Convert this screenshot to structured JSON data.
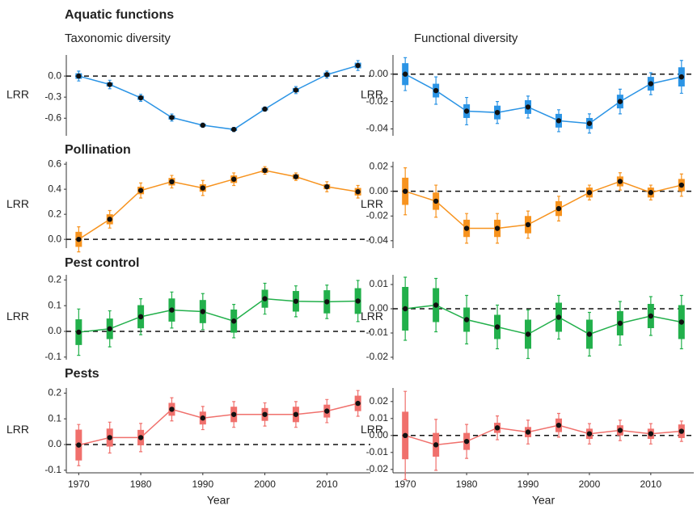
{
  "chart_data": [
    {
      "type": "line",
      "title": "Aquatic functions",
      "subtitle": "Taxonomic diversity",
      "ylabel": "LRR",
      "color": "#2b94e5",
      "x": [
        1970,
        1975,
        1980,
        1985,
        1990,
        1995,
        2000,
        2005,
        2010,
        2015
      ],
      "values": [
        0.0,
        -0.12,
        -0.31,
        -0.59,
        -0.7,
        -0.76,
        -0.47,
        -0.2,
        0.02,
        0.15
      ],
      "inner_error": [
        0.04,
        0.03,
        0.03,
        0.03,
        0.02,
        0.02,
        0.02,
        0.03,
        0.03,
        0.04
      ],
      "outer_error": [
        0.07,
        0.06,
        0.05,
        0.05,
        0.03,
        0.03,
        0.03,
        0.05,
        0.05,
        0.07
      ],
      "xlim": [
        1968,
        2017
      ],
      "ylim": [
        -0.85,
        0.3
      ],
      "yticks": [
        {
          "value": 0,
          "label": "0.0"
        },
        -0.3,
        -0.6
      ],
      "reference_y": 0
    },
    {
      "type": "line",
      "subtitle": "Functional diversity",
      "ylabel": "LRR",
      "color": "#2b94e5",
      "x": [
        1970,
        1975,
        1980,
        1985,
        1990,
        1995,
        2000,
        2005,
        2010,
        2015
      ],
      "values": [
        0.0,
        -0.012,
        -0.027,
        -0.028,
        -0.024,
        -0.034,
        -0.036,
        -0.02,
        -0.007,
        -0.002
      ],
      "inner_error": [
        0.008,
        0.005,
        0.005,
        0.005,
        0.005,
        0.005,
        0.004,
        0.005,
        0.005,
        0.007
      ],
      "outer_error": [
        0.012,
        0.01,
        0.01,
        0.008,
        0.008,
        0.008,
        0.007,
        0.009,
        0.008,
        0.012
      ],
      "xlim": [
        1968,
        2017
      ],
      "ylim": [
        -0.045,
        0.014
      ],
      "yticks": [
        {
          "value": 0,
          "label": "0.00"
        },
        -0.02,
        -0.04
      ],
      "reference_y": 0
    },
    {
      "type": "line",
      "title": "Pollination",
      "ylabel": "LRR",
      "color": "#f7931e",
      "x": [
        1970,
        1975,
        1980,
        1985,
        1990,
        1995,
        2000,
        2005,
        2010,
        2015
      ],
      "values": [
        0.0,
        0.16,
        0.39,
        0.46,
        0.41,
        0.48,
        0.55,
        0.5,
        0.42,
        0.38
      ],
      "inner_error": [
        0.06,
        0.04,
        0.03,
        0.03,
        0.03,
        0.03,
        0.02,
        0.02,
        0.02,
        0.03
      ],
      "outer_error": [
        0.1,
        0.07,
        0.06,
        0.05,
        0.06,
        0.05,
        0.03,
        0.03,
        0.04,
        0.05
      ],
      "xlim": [
        1968,
        2017
      ],
      "ylim": [
        -0.07,
        0.62
      ],
      "yticks": [
        {
          "value": 0,
          "label": "0.0"
        },
        0.2,
        0.4,
        0.6
      ],
      "reference_y": 0
    },
    {
      "type": "line",
      "ylabel": "LRR",
      "color": "#f7931e",
      "x": [
        1970,
        1975,
        1980,
        1985,
        1990,
        1995,
        2000,
        2005,
        2010,
        2015
      ],
      "values": [
        0.0,
        -0.008,
        -0.03,
        -0.03,
        -0.027,
        -0.014,
        -0.001,
        0.008,
        -0.001,
        0.005
      ],
      "inner_error": [
        0.011,
        0.007,
        0.007,
        0.007,
        0.007,
        0.006,
        0.004,
        0.004,
        0.004,
        0.005
      ],
      "outer_error": [
        0.019,
        0.013,
        0.012,
        0.012,
        0.011,
        0.01,
        0.006,
        0.007,
        0.006,
        0.009
      ],
      "xlim": [
        1968,
        2017
      ],
      "ylim": [
        -0.046,
        0.024
      ],
      "yticks": [
        {
          "value": 0.02,
          "label": "0.02"
        },
        {
          "value": 0,
          "label": "0.00"
        },
        -0.02,
        -0.04
      ],
      "reference_y": 0
    },
    {
      "type": "line",
      "title": "Pest control",
      "ylabel": "LRR",
      "color": "#22b04b",
      "x": [
        1970,
        1975,
        1980,
        1985,
        1990,
        1995,
        2000,
        2005,
        2010,
        2015
      ],
      "values": [
        -0.003,
        0.01,
        0.057,
        0.083,
        0.077,
        0.04,
        0.127,
        0.117,
        0.115,
        0.118
      ],
      "inner_error": [
        0.05,
        0.04,
        0.045,
        0.045,
        0.045,
        0.045,
        0.035,
        0.04,
        0.045,
        0.05
      ],
      "outer_error": [
        0.09,
        0.07,
        0.07,
        0.07,
        0.07,
        0.065,
        0.06,
        0.06,
        0.065,
        0.08
      ],
      "xlim": [
        1968,
        2017
      ],
      "ylim": [
        -0.11,
        0.22
      ],
      "yticks": [
        -0.1,
        {
          "value": 0,
          "label": "0.0"
        },
        0.1,
        0.2
      ],
      "reference_y": 0
    },
    {
      "type": "line",
      "ylabel": "LRR",
      "color": "#22b04b",
      "x": [
        1970,
        1975,
        1980,
        1985,
        1990,
        1995,
        2000,
        2005,
        2010,
        2015
      ],
      "values": [
        0.0,
        0.0015,
        -0.0045,
        -0.0075,
        -0.0105,
        -0.0035,
        -0.0105,
        -0.006,
        -0.003,
        -0.0055
      ],
      "inner_error": [
        0.009,
        0.007,
        0.005,
        0.005,
        0.006,
        0.006,
        0.006,
        0.005,
        0.005,
        0.007
      ],
      "outer_error": [
        0.013,
        0.011,
        0.01,
        0.009,
        0.01,
        0.009,
        0.009,
        0.009,
        0.008,
        0.011
      ],
      "xlim": [
        1968,
        2017
      ],
      "ylim": [
        -0.021,
        0.014
      ],
      "yticks": [
        -0.02,
        -0.01,
        {
          "value": 0,
          "label": "0.00"
        },
        0.01
      ],
      "reference_y": 0
    },
    {
      "type": "line",
      "title": "Pests",
      "ylabel": "LRR",
      "color": "#f0706c",
      "xlabel": "Year",
      "xticks": [
        1970,
        1980,
        1990,
        2000,
        2010
      ],
      "x": [
        1970,
        1975,
        1980,
        1985,
        1990,
        1995,
        2000,
        2005,
        2010,
        2015
      ],
      "values": [
        -0.002,
        0.027,
        0.027,
        0.137,
        0.103,
        0.117,
        0.117,
        0.117,
        0.13,
        0.16
      ],
      "inner_error": [
        0.06,
        0.035,
        0.03,
        0.025,
        0.025,
        0.03,
        0.025,
        0.03,
        0.025,
        0.03
      ],
      "outer_error": [
        0.08,
        0.06,
        0.055,
        0.045,
        0.045,
        0.05,
        0.045,
        0.05,
        0.045,
        0.05
      ],
      "xlim": [
        1968,
        2017
      ],
      "ylim": [
        -0.11,
        0.22
      ],
      "yticks": [
        -0.1,
        {
          "value": 0,
          "label": "0.0"
        },
        0.1,
        0.2
      ],
      "reference_y": 0
    },
    {
      "type": "line",
      "ylabel": "LRR",
      "color": "#f0706c",
      "xlabel": "Year",
      "xticks": [
        1970,
        1980,
        1990,
        2000,
        2010
      ],
      "x": [
        1970,
        1975,
        1980,
        1985,
        1990,
        1995,
        2000,
        2005,
        2010,
        2015
      ],
      "values": [
        0.0,
        -0.0055,
        -0.0035,
        0.0045,
        0.002,
        0.006,
        0.001,
        0.003,
        0.001,
        0.0025
      ],
      "inner_error": [
        0.014,
        0.007,
        0.005,
        0.003,
        0.003,
        0.004,
        0.003,
        0.003,
        0.003,
        0.004
      ],
      "outer_error": [
        0.026,
        0.015,
        0.01,
        0.007,
        0.007,
        0.007,
        0.006,
        0.006,
        0.006,
        0.006
      ],
      "xlim": [
        1968,
        2017
      ],
      "ylim": [
        -0.022,
        0.028
      ],
      "yticks": [
        -0.02,
        -0.01,
        {
          "value": 0,
          "label": "0.00"
        },
        0.01,
        0.02
      ],
      "reference_y": 0
    }
  ]
}
